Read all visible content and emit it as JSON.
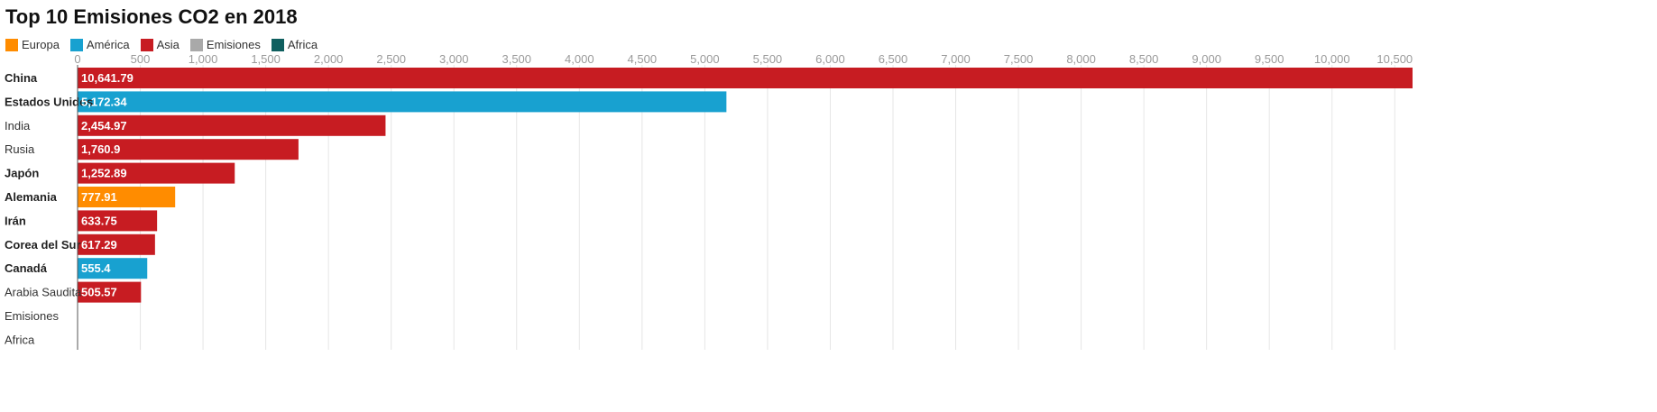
{
  "chart_data": {
    "type": "bar",
    "orientation": "horizontal",
    "title": "Top 10 Emisiones CO2 en 2018",
    "legend": [
      {
        "name": "Europa",
        "color": "#ff8c00"
      },
      {
        "name": "América",
        "color": "#18a1d0"
      },
      {
        "name": "Asia",
        "color": "#c71c22"
      },
      {
        "name": "Emisiones",
        "color": "#a9a9a9"
      },
      {
        "name": "Africa",
        "color": "#0f5f5f"
      }
    ],
    "legend_position": "top-left",
    "categories": [
      "China",
      "Estados Unidos",
      "India",
      "Rusia",
      "Japón",
      "Alemania",
      "Irán",
      "Corea del Sur",
      "Canadá",
      "Arabia Saudita",
      "Emisiones",
      "Africa"
    ],
    "bold_categories": [
      "China",
      "Estados Unidos",
      "Japón",
      "Alemania",
      "Irán",
      "Corea del Sur",
      "Canadá"
    ],
    "values": [
      10641.79,
      5172.34,
      2454.97,
      1760.9,
      1252.89,
      777.91,
      633.75,
      617.29,
      555.4,
      505.57,
      null,
      null
    ],
    "value_labels": [
      "10,641.79",
      "5,172.34",
      "2,454.97",
      "1,760.9",
      "1,252.89",
      "777.91",
      "633.75",
      "617.29",
      "555.4",
      "505.57",
      "",
      ""
    ],
    "groups": [
      "Asia",
      "América",
      "Asia",
      "Asia",
      "Asia",
      "Europa",
      "Asia",
      "Asia",
      "América",
      "Asia",
      "Emisiones",
      "Africa"
    ],
    "xlim": [
      0,
      10641.79
    ],
    "xticks": [
      0,
      500,
      1000,
      1500,
      2000,
      2500,
      3000,
      3500,
      4000,
      4500,
      5000,
      5500,
      6000,
      6500,
      7000,
      7500,
      8000,
      8500,
      9000,
      9500,
      10000,
      10500
    ],
    "xtick_labels": [
      "0",
      "500",
      "1,000",
      "1,500",
      "2,000",
      "2,500",
      "3,000",
      "3,500",
      "4,000",
      "4,500",
      "5,000",
      "5,500",
      "6,000",
      "6,500",
      "7,000",
      "7,500",
      "8,000",
      "8,500",
      "9,000",
      "9,500",
      "10,000",
      "10,500"
    ],
    "xaxis_position": "top",
    "grid": true
  }
}
